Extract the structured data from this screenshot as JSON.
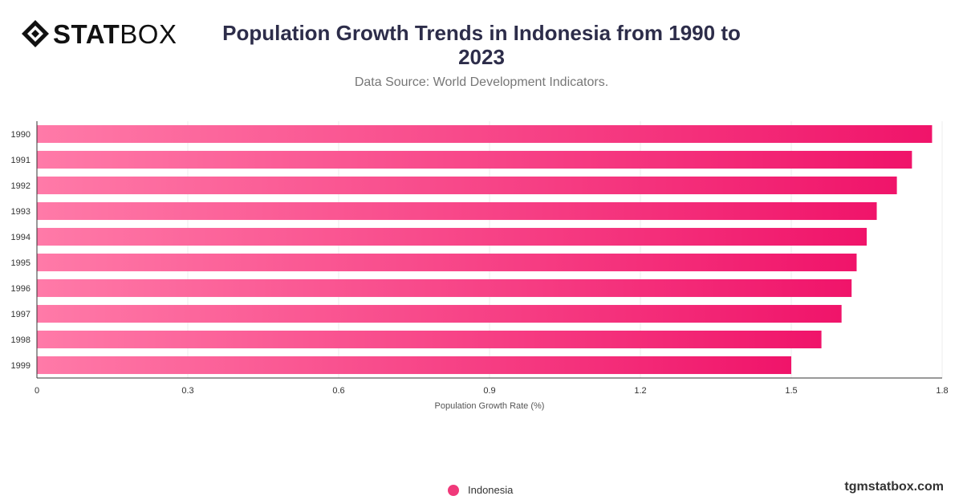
{
  "brand": {
    "logo_bold": "STAT",
    "logo_light": "BOX",
    "watermark": "tgmstatbox.com"
  },
  "chart_data": {
    "type": "bar",
    "orientation": "horizontal",
    "title": "Population Growth Trends in Indonesia from 1990 to 2023",
    "subtitle": "Data Source: World Development Indicators.",
    "xlabel": "Population Growth Rate (%)",
    "ylabel": "",
    "xlim": [
      0,
      1.8
    ],
    "x_ticks": [
      "0",
      "0.3",
      "0.6",
      "0.9",
      "1.2",
      "1.5",
      "1.8"
    ],
    "categories": [
      "1990",
      "1991",
      "1992",
      "1993",
      "1994",
      "1995",
      "1996",
      "1997",
      "1998",
      "1999"
    ],
    "series": [
      {
        "name": "Indonesia",
        "values": [
          1.78,
          1.74,
          1.71,
          1.67,
          1.65,
          1.63,
          1.62,
          1.6,
          1.56,
          1.5
        ]
      }
    ],
    "grid": true,
    "legend_position": "bottom-center",
    "colors": {
      "bar_start": "#ff7aa8",
      "bar_end": "#f0146a",
      "grid": "#ececec",
      "axis": "#333333"
    }
  }
}
